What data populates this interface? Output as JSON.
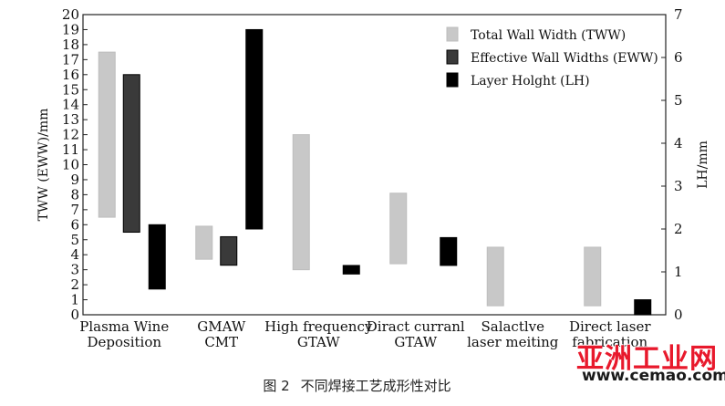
{
  "chart_data": {
    "type": "floating-bar",
    "y_left": {
      "label": "TWW (EWW)/mm",
      "min": 0,
      "max": 20,
      "step": 1
    },
    "y_right": {
      "label": "LH/mm",
      "min": 0,
      "max": 7,
      "step": 1
    },
    "categories": [
      [
        "Plasma Wine",
        "Deposition"
      ],
      [
        "GMAW",
        "CMT"
      ],
      [
        "High frequency",
        "GTAW"
      ],
      [
        "Diract curranl",
        "GTAW"
      ],
      [
        "Salactlve",
        "laser meiting"
      ],
      [
        "Direct laser",
        "fabrication"
      ]
    ],
    "series": [
      {
        "name": "Total Wall Width (TWW)",
        "axis": "left",
        "color": "#c8c8c8",
        "ranges": [
          [
            6.5,
            17.5
          ],
          [
            3.7,
            5.9
          ],
          [
            3.0,
            12.0
          ],
          [
            3.4,
            8.1
          ],
          [
            0.6,
            4.5
          ],
          [
            0.6,
            4.5
          ]
        ]
      },
      {
        "name": "Effective Wall Widths (EWW)",
        "axis": "left",
        "color": "#3a3a3a",
        "ranges": [
          [
            5.5,
            16.0
          ],
          [
            3.3,
            5.2
          ],
          null,
          null,
          null,
          null
        ]
      },
      {
        "name": "Layer Holght (LH)",
        "axis": "right",
        "color": "#000000",
        "ranges": [
          [
            0.6,
            2.1
          ],
          [
            2.0,
            6.65
          ],
          [
            0.95,
            1.15
          ],
          [
            1.15,
            1.8
          ],
          null,
          [
            0.0,
            0.35
          ]
        ]
      }
    ],
    "legend": "top-right",
    "grid": false
  },
  "caption": {
    "figure": "图 2",
    "text": "不同焊接工艺成形性对比"
  },
  "watermark": {
    "brand": "亚洲工业网",
    "url": "www.cemao.com"
  }
}
